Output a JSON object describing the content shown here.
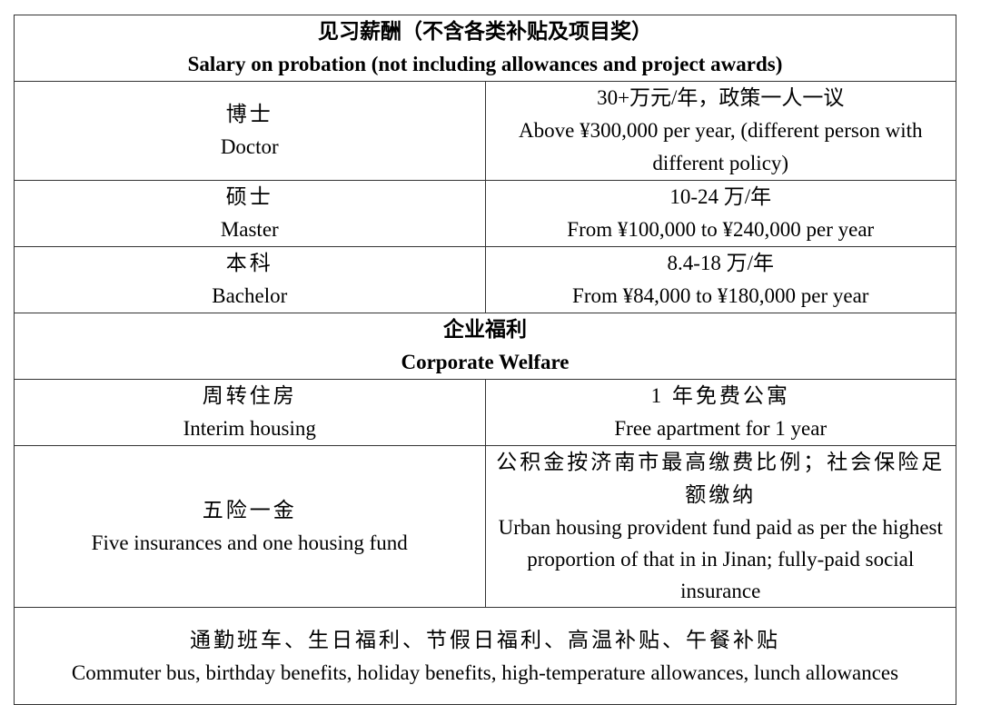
{
  "salary": {
    "title_cn": "见习薪酬（不含各类补贴及项目奖）",
    "title_en": "Salary on probation (not including allowances and project awards)",
    "rows": [
      {
        "label_cn": "博士",
        "label_en": "Doctor",
        "value_cn": "30+万元/年，政策一人一议",
        "value_en": "Above ¥300,000 per year, (different person with different policy)"
      },
      {
        "label_cn": "硕士",
        "label_en": "Master",
        "value_cn": "10-24 万/年",
        "value_en": "From ¥100,000 to ¥240,000 per year"
      },
      {
        "label_cn": "本科",
        "label_en": "Bachelor",
        "value_cn": "8.4-18 万/年",
        "value_en": "From ¥84,000 to ¥180,000 per year"
      }
    ]
  },
  "welfare": {
    "title_cn": "企业福利",
    "title_en": "Corporate Welfare",
    "rows": [
      {
        "label_cn": "周转住房",
        "label_en": "Interim housing",
        "value_cn": "1 年免费公寓",
        "value_en": "Free apartment for 1 year"
      },
      {
        "label_cn": "五险一金",
        "label_en": "Five insurances and one housing fund",
        "value_cn": "公积金按济南市最高缴费比例；社会保险足额缴纳",
        "value_en": "Urban housing provident fund paid as per the highest proportion of that in in Jinan; fully-paid social insurance"
      }
    ],
    "other_cn": "通勤班车、生日福利、节假日福利、高温补贴、午餐补贴",
    "other_en": "Commuter bus, birthday benefits, holiday benefits, high-temperature allowances, lunch allowances"
  }
}
